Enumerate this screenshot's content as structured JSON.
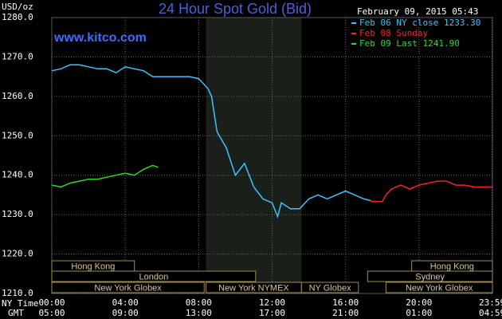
{
  "chart_data": {
    "type": "line",
    "title": "24 Hour Spot Gold (Bid)",
    "y_unit": "USD/oz",
    "site": "www.kitco.com",
    "timestamp": "February 09, 2015 05:43",
    "x_axis_labels": [
      "NY Time",
      "GMT"
    ],
    "xlim": [
      0,
      24
    ],
    "xticks": [
      {
        "value": 0,
        "label": "00:00"
      },
      {
        "value": 4,
        "label": "04:00"
      },
      {
        "value": 8,
        "label": "08:00"
      },
      {
        "value": 12,
        "label": "12:00"
      },
      {
        "value": 16,
        "label": "16:00"
      },
      {
        "value": 20,
        "label": "20:00"
      },
      {
        "value": 23.98,
        "label": "23:59"
      }
    ],
    "gmt_tick_labels": [
      "05:00",
      "09:00",
      "13:00",
      "17:00",
      "21:00",
      "01:00",
      "04:59"
    ],
    "ylim": [
      1210,
      1280
    ],
    "yticks": [
      {
        "value": 1210,
        "label": "1210.0"
      },
      {
        "value": 1220,
        "label": "1220.0"
      },
      {
        "value": 1230,
        "label": "1230.0"
      },
      {
        "value": 1240,
        "label": "1240.0"
      },
      {
        "value": 1250,
        "label": "1250.0"
      },
      {
        "value": 1260,
        "label": "1260.0"
      },
      {
        "value": 1270,
        "label": "1270.0"
      },
      {
        "value": 1280,
        "label": "1280.0"
      }
    ],
    "grid": true,
    "shaded_range": [
      8.4,
      13.6
    ],
    "series": [
      {
        "name": "Feb 06 NY close 1233.30",
        "color": "#3cc4ff",
        "x": [
          0,
          0.5,
          1,
          1.5,
          2,
          2.5,
          3,
          3.5,
          4,
          4.5,
          5,
          5.5,
          6,
          6.5,
          7,
          7.5,
          8,
          8.5,
          8.7,
          9,
          9.5,
          10,
          10.5,
          11,
          11.5,
          12,
          12.3,
          12.5,
          13,
          13.5,
          14,
          14.5,
          15,
          15.5,
          16,
          16.5,
          17,
          17.4
        ],
        "values": [
          1266.5,
          1267,
          1268,
          1268,
          1267.5,
          1267,
          1267,
          1266,
          1267.5,
          1267,
          1266.5,
          1265,
          1265,
          1265,
          1265,
          1265,
          1264.5,
          1262,
          1260,
          1251,
          1247,
          1240,
          1243,
          1237,
          1234,
          1233,
          1229.5,
          1233,
          1231.5,
          1231.5,
          1234,
          1235,
          1234,
          1235,
          1236,
          1235,
          1234,
          1233.5
        ]
      },
      {
        "name": "Feb 08 Sunday",
        "color": "#ff2020",
        "x": [
          17.4,
          18,
          18.2,
          18.5,
          19,
          19.5,
          20,
          20.5,
          21,
          21.5,
          22,
          22.5,
          23,
          23.5,
          24
        ],
        "values": [
          1233.3,
          1233.3,
          1235,
          1236.5,
          1237.5,
          1236.5,
          1237.5,
          1238,
          1238.5,
          1238.5,
          1237.5,
          1237.5,
          1237,
          1237,
          1237
        ]
      },
      {
        "name": "Feb 09 Last 1241.90",
        "color": "#22e022",
        "x": [
          0,
          0.5,
          1,
          1.5,
          2,
          2.5,
          3,
          3.5,
          4,
          4.5,
          5,
          5.5,
          5.8
        ],
        "values": [
          1237.5,
          1237,
          1238,
          1238.5,
          1239,
          1239,
          1239.5,
          1240,
          1240.5,
          1240,
          1241.5,
          1242.5,
          1242
        ]
      }
    ],
    "sessions": [
      [
        {
          "name": "Hong Kong",
          "start": 0,
          "end": 4.5
        },
        {
          "name": "Hong Kong",
          "start": 19.6,
          "end": 24
        }
      ],
      [
        {
          "name": "London",
          "start": 0,
          "end": 11.1
        },
        {
          "name": "Sydney",
          "start": 17.2,
          "end": 24
        }
      ],
      [
        {
          "name": "New York Globex",
          "start": 0,
          "end": 8.3
        },
        {
          "name": "New York NYMEX",
          "start": 8.4,
          "end": 13.6
        },
        {
          "name": "NY Globex",
          "start": 13.6,
          "end": 16.7
        },
        {
          "name": "New York Globex",
          "start": 18.2,
          "end": 24
        }
      ]
    ]
  }
}
